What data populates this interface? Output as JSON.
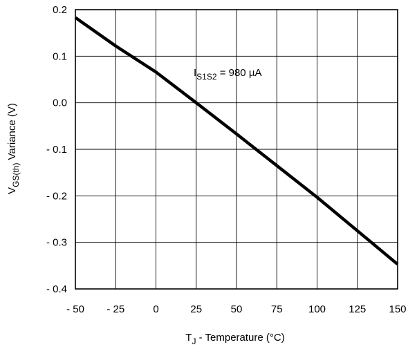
{
  "chart_data": {
    "type": "line",
    "xlabel": {
      "main": "T",
      "sub": "J",
      "rest": " - Temperature (°C)"
    },
    "ylabel": {
      "main": "V",
      "sub": "GS(th)",
      "rest": "  Variance (V)"
    },
    "xlim": [
      -50,
      150
    ],
    "ylim": [
      -0.4,
      0.2
    ],
    "grid": true,
    "x_ticks": [
      -50,
      -25,
      0,
      25,
      50,
      75,
      100,
      125,
      150
    ],
    "x_tick_labels": [
      "- 50",
      "- 25",
      "0",
      "25",
      "50",
      "75",
      "100",
      "125",
      "150"
    ],
    "y_ticks": [
      0.2,
      0.1,
      0.0,
      -0.1,
      -0.2,
      -0.3,
      -0.4
    ],
    "y_tick_labels": [
      "0.2",
      "0.1",
      "0.0",
      "- 0.1",
      "- 0.2",
      "- 0.3",
      "- 0.4"
    ],
    "annotation": {
      "main": "I",
      "sub": "S1S2",
      "rest": " = 980 µA"
    },
    "series": [
      {
        "x": [
          -50,
          -25,
          0,
          25,
          50,
          75,
          100,
          125,
          150
        ],
        "y": [
          0.183,
          0.122,
          0.066,
          0.0,
          -0.067,
          -0.135,
          -0.203,
          -0.275,
          -0.347
        ]
      }
    ]
  }
}
